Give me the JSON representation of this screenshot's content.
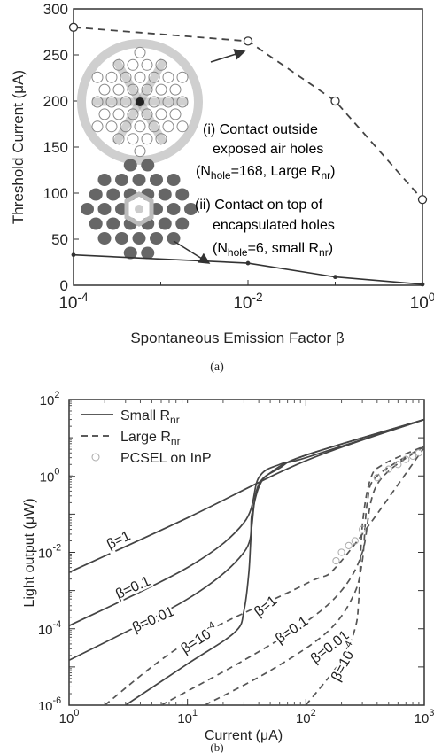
{
  "chart_data": [
    {
      "type": "line",
      "panel_label": "(a)",
      "xlabel": "Spontaneous Emission Factor β",
      "ylabel": "Threshold Current (μA)",
      "x_scale": "log",
      "xlim": [
        0.0001,
        1
      ],
      "ylim": [
        0,
        300
      ],
      "x_ticks": [
        0.0001,
        0.01,
        1
      ],
      "x_tick_labels": [
        {
          "base": "10",
          "exp": "-4"
        },
        {
          "base": "10",
          "exp": "-2"
        },
        {
          "base": "10",
          "exp": "0"
        }
      ],
      "y_ticks": [
        0,
        50,
        100,
        150,
        200,
        250,
        300
      ],
      "y_tick_labels": [
        "0",
        "50",
        "100",
        "150",
        "200",
        "250",
        "300"
      ],
      "grid": false,
      "series": [
        {
          "x": [
            0.0001,
            0.01,
            0.1,
            1
          ],
          "y": [
            280,
            265,
            200,
            93
          ],
          "style": "dashed",
          "marker": "circle",
          "color": "#444444"
        },
        {
          "x": [
            0.0001,
            0.01,
            0.1,
            1
          ],
          "y": [
            33,
            24,
            9,
            1
          ],
          "style": "solid",
          "marker": "dot",
          "color": "#333333"
        }
      ],
      "annotations": {
        "label_i_1": "(i) Contact outside",
        "label_i_2": "exposed air holes",
        "label_i_3_pre": "(N",
        "label_i_3_sub": "hole",
        "label_i_3_mid": "=168, Large  R",
        "label_i_3_sub2": "nr",
        "label_i_3_post": ")",
        "label_ii_1": "(ii) Contact on top of",
        "label_ii_2": "encapsulated holes",
        "label_ii_3_pre": "(N",
        "label_ii_3_sub": "hole",
        "label_ii_3_mid": "=6, small R",
        "label_ii_3_sub2": "nr",
        "label_ii_3_post": ")"
      }
    },
    {
      "type": "line",
      "panel_label": "(b)",
      "xlabel": "Current (μA)",
      "ylabel": "Light output (μW)",
      "x_scale": "log",
      "y_scale": "log",
      "xlim": [
        1,
        1000
      ],
      "ylim": [
        1e-06,
        100
      ],
      "x_tick_labels": [
        {
          "base": "10",
          "exp": "0"
        },
        {
          "base": "10",
          "exp": "1"
        },
        {
          "base": "10",
          "exp": "2"
        },
        {
          "base": "10",
          "exp": "3"
        }
      ],
      "y_tick_labels": [
        {
          "base": "10",
          "exp": "-6"
        },
        {
          "base": "10",
          "exp": "-4"
        },
        {
          "base": "10",
          "exp": "-2"
        },
        {
          "base": "10",
          "exp": "0"
        },
        {
          "base": "10",
          "exp": "2"
        }
      ],
      "legend_placement": "top-left",
      "legend": [
        {
          "label_pre": "Small R",
          "label_sub": "nr",
          "style": "solid"
        },
        {
          "label_pre": "Large  R",
          "label_sub": "nr",
          "style": "dashed"
        },
        {
          "label_pre": "PCSEL on InP",
          "label_sub": "",
          "style": "circle"
        }
      ],
      "series": [
        {
          "name": "Small Rnr",
          "beta_label": "β=1",
          "style": "solid",
          "x": [
            1,
            10,
            100,
            1000
          ],
          "y": [
            0.003,
            0.08,
            2.5,
            30
          ]
        },
        {
          "name": "Small Rnr",
          "beta_label": "β=0.1",
          "style": "solid",
          "x": [
            1,
            10,
            30,
            40,
            60,
            100,
            1000
          ],
          "y": [
            0.00012,
            0.004,
            0.06,
            0.9,
            2.0,
            3.0,
            30
          ]
        },
        {
          "name": "Small Rnr",
          "beta_label": "β=0.01",
          "style": "solid",
          "x": [
            1,
            10,
            30,
            35,
            40,
            50,
            100,
            1000
          ],
          "y": [
            1.5e-05,
            0.0006,
            0.01,
            0.1,
            0.5,
            1.2,
            3.5,
            30
          ]
        },
        {
          "name": "Small Rnr",
          "beta_label": "β=10-4",
          "style": "solid",
          "x": [
            3,
            10,
            25,
            30,
            33,
            35,
            40,
            60,
            100,
            1000
          ],
          "y": [
            1e-06,
            1.2e-05,
            8e-05,
            0.0003,
            0.003,
            0.05,
            0.6,
            1.6,
            3.5,
            30
          ]
        },
        {
          "name": "Large Rnr",
          "beta_label": "β=1",
          "style": "dashed",
          "x": [
            2,
            10,
            100,
            200,
            1000
          ],
          "y": [
            1e-06,
            4.5e-05,
            0.0015,
            0.006,
            5.5
          ]
        },
        {
          "name": "Large Rnr",
          "beta_label": "β=0.1",
          "style": "dashed",
          "x": [
            6,
            30,
            100,
            200,
            300,
            400,
            1000
          ],
          "y": [
            1e-06,
            1.5e-05,
            0.00015,
            0.001,
            0.01,
            0.6,
            6
          ]
        },
        {
          "name": "Large Rnr",
          "beta_label": "β=0.01",
          "style": "dashed",
          "x": [
            14,
            50,
            150,
            250,
            300,
            330,
            400,
            1000
          ],
          "y": [
            1e-06,
            8e-06,
            8e-05,
            0.0007,
            0.006,
            0.2,
            1,
            6
          ]
        },
        {
          "name": "Large Rnr",
          "beta_label": "β=10-4",
          "style": "dashed",
          "x": [
            100,
            200,
            260,
            280,
            300,
            350,
            450,
            1000
          ],
          "y": [
            1e-06,
            1.5e-05,
            0.0001,
            0.0006,
            0.05,
            0.8,
            2,
            6
          ]
        },
        {
          "name": "PCSEL on InP",
          "style": "circle",
          "x": [
            180,
            200,
            230,
            260,
            300,
            400,
            500,
            600,
            700,
            800,
            900
          ],
          "y": [
            0.006,
            0.01,
            0.015,
            0.02,
            0.04,
            0.9,
            1.5,
            2.0,
            2.7,
            3.3,
            4.0
          ]
        }
      ]
    }
  ]
}
